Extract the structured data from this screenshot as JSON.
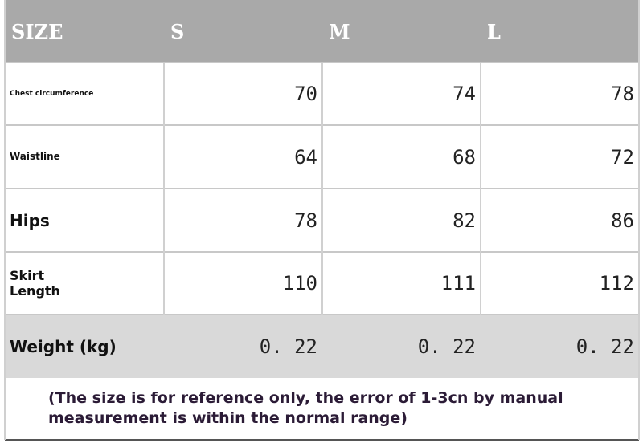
{
  "table": {
    "header": [
      "SIZE",
      "S",
      "M",
      "L"
    ],
    "rows": [
      [
        "Chest circumference",
        "70",
        "74",
        "78"
      ],
      [
        "Waistline",
        "64",
        "68",
        "72"
      ],
      [
        "Hips",
        "78",
        "82",
        "86"
      ],
      [
        "Skirt Length",
        "110",
        "111",
        "112"
      ],
      [
        "Weight (kg)",
        "0. 22",
        "0. 22",
        "0. 22"
      ]
    ]
  },
  "note": "(The size is for reference only, the error of 1-3cn by manual measurement is within the normal range)"
}
